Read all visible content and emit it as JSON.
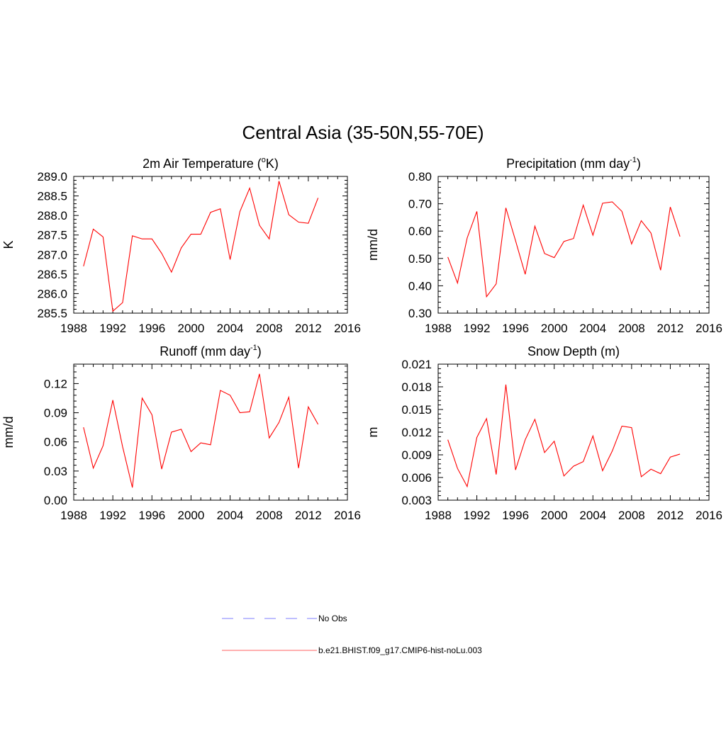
{
  "main_title": "Central Asia (35-50N,55-70E)",
  "legend": {
    "items": [
      {
        "label": "No Obs",
        "color": "#9999ff",
        "style": "dashed"
      },
      {
        "label": "b.e21.BHIST.f09_g17.CMIP6-hist-noLu.003",
        "color": "#ff8080",
        "style": "solid"
      }
    ]
  },
  "chart_data": [
    {
      "type": "line",
      "title": "2m Air Temperature (",
      "title_sup": "o",
      "title_after": "K)",
      "ylabel": "K",
      "xlim": [
        1988,
        2016
      ],
      "ylim": [
        285.5,
        289.0
      ],
      "xticks": [
        "1988",
        "1992",
        "1996",
        "2000",
        "2004",
        "2008",
        "2012",
        "2016"
      ],
      "xtick_values": [
        1988,
        1992,
        1996,
        2000,
        2004,
        2008,
        2012,
        2016
      ],
      "yticks": [
        "285.5",
        "286.0",
        "286.5",
        "287.0",
        "287.5",
        "288.0",
        "288.5",
        "289.0"
      ],
      "ytick_values": [
        285.5,
        286.0,
        286.5,
        287.0,
        287.5,
        288.0,
        288.5,
        289.0
      ],
      "series": [
        {
          "color": "#ff0000",
          "x": [
            1989,
            1990,
            1991,
            1992,
            1993,
            1994,
            1995,
            1996,
            1997,
            1998,
            1999,
            2000,
            2001,
            2002,
            2003,
            2004,
            2005,
            2006,
            2007,
            2008,
            2009,
            2010,
            2011,
            2012,
            2013
          ],
          "y": [
            286.7,
            287.65,
            287.45,
            285.55,
            285.77,
            287.48,
            287.4,
            287.4,
            287.03,
            286.55,
            287.17,
            287.52,
            287.52,
            288.08,
            288.17,
            286.87,
            288.1,
            288.7,
            287.75,
            287.4,
            288.88,
            288.02,
            287.83,
            287.8,
            288.45
          ]
        }
      ]
    },
    {
      "type": "line",
      "title": "Precipitation (mm day",
      "title_sup": "-1",
      "title_after": ")",
      "ylabel": "mm/d",
      "xlim": [
        1988,
        2016
      ],
      "ylim": [
        0.3,
        0.8
      ],
      "xticks": [
        "1988",
        "1992",
        "1996",
        "2000",
        "2004",
        "2008",
        "2012",
        "2016"
      ],
      "xtick_values": [
        1988,
        1992,
        1996,
        2000,
        2004,
        2008,
        2012,
        2016
      ],
      "yticks": [
        "0.30",
        "0.40",
        "0.50",
        "0.60",
        "0.70",
        "0.80"
      ],
      "ytick_values": [
        0.3,
        0.4,
        0.5,
        0.6,
        0.7,
        0.8
      ],
      "series": [
        {
          "color": "#ff0000",
          "x": [
            1989,
            1990,
            1991,
            1992,
            1993,
            1994,
            1995,
            1996,
            1997,
            1998,
            1999,
            2000,
            2001,
            2002,
            2003,
            2004,
            2005,
            2006,
            2007,
            2008,
            2009,
            2010,
            2011,
            2012,
            2013
          ],
          "y": [
            0.505,
            0.41,
            0.575,
            0.672,
            0.36,
            0.407,
            0.685,
            0.565,
            0.442,
            0.618,
            0.518,
            0.503,
            0.562,
            0.573,
            0.695,
            0.585,
            0.702,
            0.707,
            0.672,
            0.553,
            0.638,
            0.593,
            0.457,
            0.688,
            0.58
          ]
        }
      ]
    },
    {
      "type": "line",
      "title": "Runoff (mm day",
      "title_sup": "-1",
      "title_after": ")",
      "ylabel": "mm/d",
      "xlim": [
        1988,
        2016
      ],
      "ylim": [
        0.0,
        0.14
      ],
      "xticks": [
        "1988",
        "1992",
        "1996",
        "2000",
        "2004",
        "2008",
        "2012",
        "2016"
      ],
      "xtick_values": [
        1988,
        1992,
        1996,
        2000,
        2004,
        2008,
        2012,
        2016
      ],
      "yticks": [
        "0.00",
        "0.03",
        "0.06",
        "0.09",
        "0.12"
      ],
      "ytick_values": [
        0.0,
        0.03,
        0.06,
        0.09,
        0.12
      ],
      "series": [
        {
          "color": "#ff0000",
          "x": [
            1989,
            1990,
            1991,
            1992,
            1993,
            1994,
            1995,
            1996,
            1997,
            1998,
            1999,
            2000,
            2001,
            2002,
            2003,
            2004,
            2005,
            2006,
            2007,
            2008,
            2009,
            2010,
            2011,
            2012,
            2013
          ],
          "y": [
            0.075,
            0.033,
            0.056,
            0.103,
            0.055,
            0.013,
            0.105,
            0.088,
            0.032,
            0.07,
            0.073,
            0.05,
            0.059,
            0.057,
            0.113,
            0.108,
            0.09,
            0.091,
            0.13,
            0.064,
            0.08,
            0.106,
            0.033,
            0.096,
            0.078
          ]
        }
      ]
    },
    {
      "type": "line",
      "title": "Snow Depth (m)",
      "title_sup": "",
      "title_after": "",
      "ylabel": "m",
      "xlim": [
        1988,
        2016
      ],
      "ylim": [
        0.003,
        0.021
      ],
      "xticks": [
        "1988",
        "1992",
        "1996",
        "2000",
        "2004",
        "2008",
        "2012",
        "2016"
      ],
      "xtick_values": [
        1988,
        1992,
        1996,
        2000,
        2004,
        2008,
        2012,
        2016
      ],
      "yticks": [
        "0.003",
        "0.006",
        "0.009",
        "0.012",
        "0.015",
        "0.018",
        "0.021"
      ],
      "ytick_values": [
        0.003,
        0.006,
        0.009,
        0.012,
        0.015,
        0.018,
        0.021
      ],
      "series": [
        {
          "color": "#ff0000",
          "x": [
            1989,
            1990,
            1991,
            1992,
            1993,
            1994,
            1995,
            1996,
            1997,
            1998,
            1999,
            2000,
            2001,
            2002,
            2003,
            2004,
            2005,
            2006,
            2007,
            2008,
            2009,
            2010,
            2011,
            2012,
            2013
          ],
          "y": [
            0.011,
            0.0072,
            0.0048,
            0.0113,
            0.0138,
            0.0064,
            0.0183,
            0.007,
            0.011,
            0.0137,
            0.0093,
            0.0108,
            0.0062,
            0.0075,
            0.0081,
            0.0115,
            0.0069,
            0.0095,
            0.0128,
            0.0126,
            0.0061,
            0.0071,
            0.0065,
            0.0087,
            0.0091
          ]
        }
      ]
    }
  ]
}
